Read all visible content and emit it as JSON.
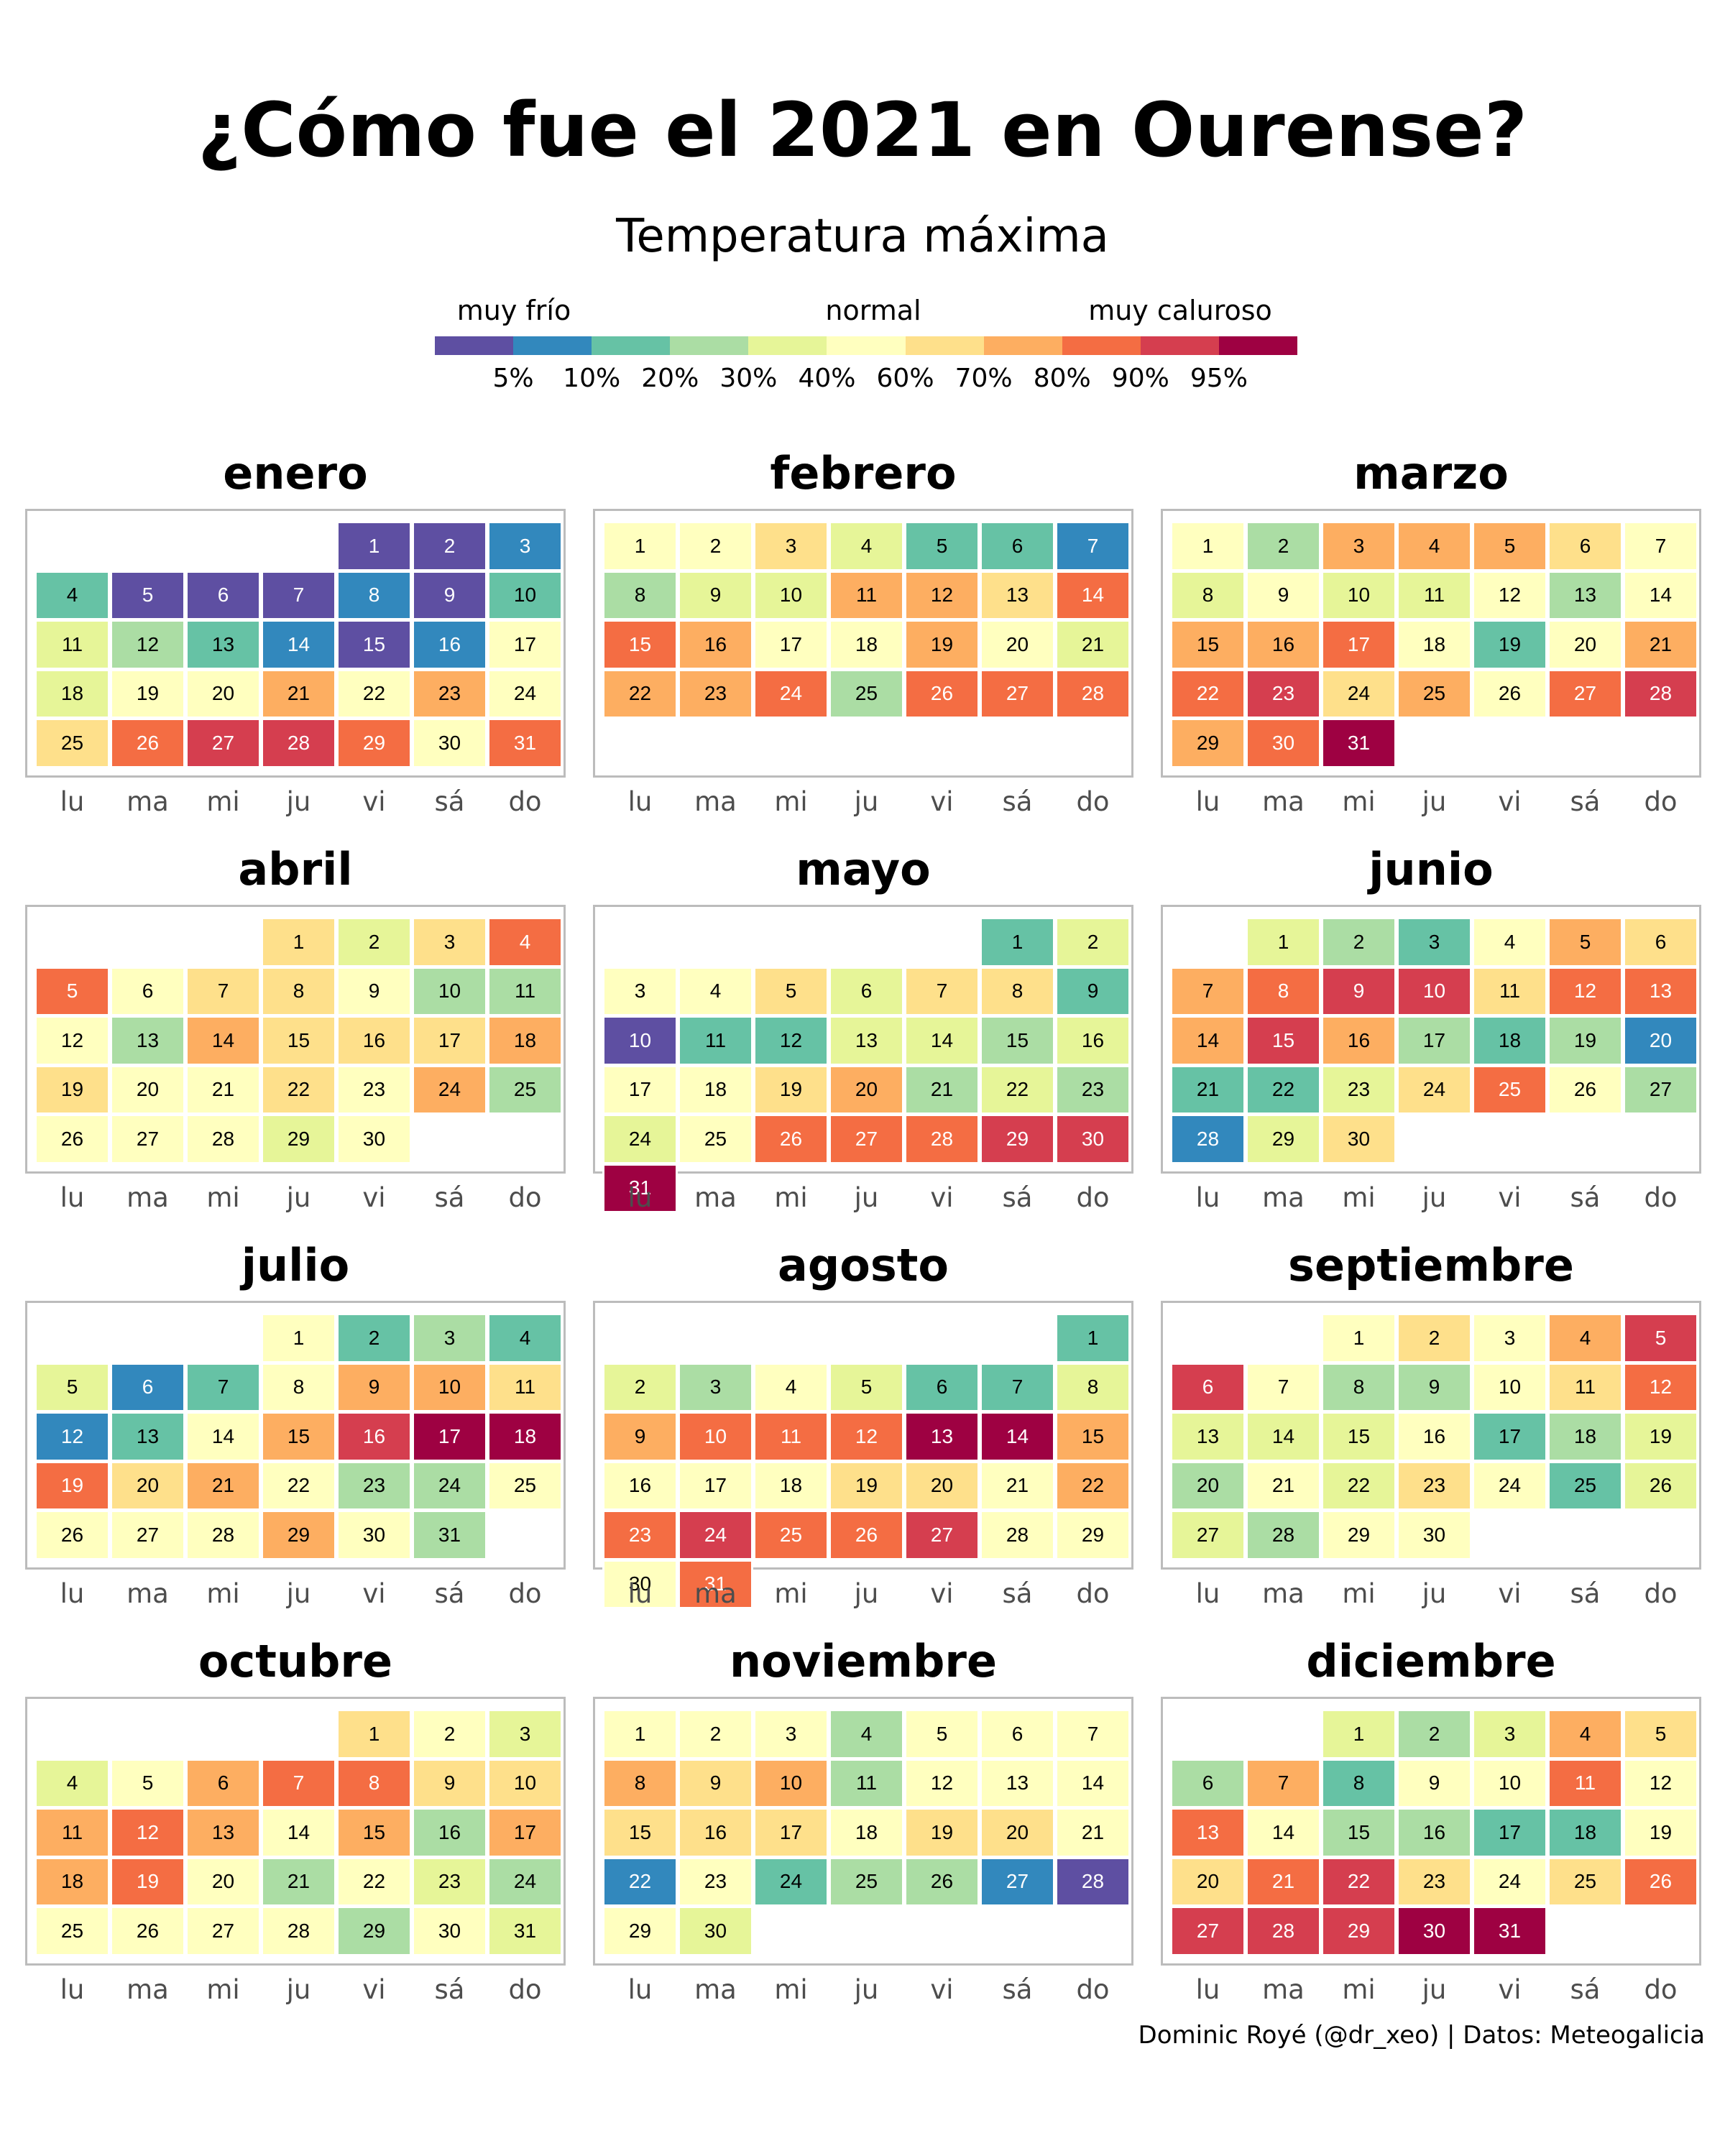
{
  "title": "¿Cómo fue el 2021 en Ourense?",
  "subtitle": "Temperatura máxima",
  "caption": "Dominic Royé (@dr_xeo) | Datos: Meteogalicia",
  "legend": {
    "labels": [
      "muy frío",
      "normal",
      "muy caluroso"
    ],
    "ticks": [
      "5%",
      "10%",
      "20%",
      "30%",
      "40%",
      "60%",
      "70%",
      "80%",
      "90%",
      "95%"
    ],
    "colors": [
      "#5e4fa2",
      "#3288bd",
      "#66c2a5",
      "#abdda4",
      "#e6f598",
      "#ffffbf",
      "#fee08b",
      "#fdae61",
      "#f46d43",
      "#d53e4f",
      "#9e0142"
    ]
  },
  "weekdays": [
    "lu",
    "ma",
    "mi",
    "ju",
    "vi",
    "sá",
    "do"
  ],
  "chart_data": {
    "type": "heatmap",
    "title": "¿Cómo fue el 2021 en Ourense?",
    "subtitle": "Temperatura máxima",
    "year": 2021,
    "value_scale": "percentile class index: 0=<5%, 1=5-10%, 2=10-20%, 3=20-30%, 4=30-40%, 5=40-60%, 6=60-70%, 7=70-80%, 8=80-90%, 9=90-95%, 10=>95%",
    "months": [
      {
        "name": "enero",
        "first_weekday": 4,
        "values": [
          0,
          0,
          1,
          2,
          0,
          0,
          0,
          1,
          0,
          2,
          4,
          3,
          2,
          1,
          0,
          1,
          5,
          4,
          5,
          5,
          7,
          5,
          7,
          5,
          6,
          8,
          9,
          9,
          8,
          5,
          8
        ]
      },
      {
        "name": "febrero",
        "first_weekday": 0,
        "values": [
          5,
          5,
          6,
          4,
          2,
          2,
          1,
          3,
          4,
          4,
          7,
          7,
          6,
          8,
          8,
          7,
          5,
          5,
          7,
          5,
          4,
          7,
          7,
          8,
          3,
          8,
          8,
          8
        ]
      },
      {
        "name": "marzo",
        "first_weekday": 0,
        "values": [
          5,
          3,
          7,
          7,
          7,
          6,
          5,
          4,
          5,
          4,
          4,
          5,
          3,
          5,
          7,
          7,
          8,
          5,
          2,
          5,
          7,
          8,
          9,
          6,
          7,
          5,
          8,
          9,
          7,
          8,
          10
        ]
      },
      {
        "name": "abril",
        "first_weekday": 3,
        "values": [
          6,
          4,
          6,
          8,
          8,
          5,
          6,
          6,
          5,
          3,
          3,
          5,
          3,
          7,
          6,
          6,
          6,
          7,
          6,
          5,
          5,
          6,
          5,
          7,
          3,
          5,
          5,
          5,
          4,
          5
        ]
      },
      {
        "name": "mayo",
        "first_weekday": 5,
        "values": [
          2,
          4,
          5,
          5,
          6,
          4,
          6,
          6,
          2,
          0,
          2,
          2,
          4,
          4,
          3,
          4,
          5,
          5,
          6,
          7,
          3,
          4,
          3,
          4,
          5,
          8,
          8,
          8,
          9,
          9,
          10
        ]
      },
      {
        "name": "junio",
        "first_weekday": 1,
        "values": [
          4,
          3,
          2,
          5,
          7,
          6,
          7,
          8,
          9,
          9,
          6,
          8,
          8,
          7,
          9,
          7,
          3,
          2,
          3,
          1,
          2,
          2,
          4,
          6,
          8,
          5,
          3,
          1,
          4,
          6
        ]
      },
      {
        "name": "julio",
        "first_weekday": 3,
        "values": [
          5,
          2,
          3,
          2,
          4,
          1,
          2,
          5,
          7,
          7,
          6,
          1,
          2,
          5,
          7,
          9,
          10,
          10,
          8,
          6,
          7,
          5,
          3,
          3,
          5,
          5,
          5,
          5,
          7,
          5,
          3
        ]
      },
      {
        "name": "agosto",
        "first_weekday": 6,
        "values": [
          2,
          4,
          3,
          5,
          4,
          2,
          2,
          4,
          7,
          8,
          8,
          8,
          10,
          10,
          7,
          5,
          5,
          5,
          6,
          6,
          5,
          7,
          8,
          9,
          8,
          8,
          9,
          5,
          5,
          5,
          8
        ]
      },
      {
        "name": "septiembre",
        "first_weekday": 2,
        "values": [
          5,
          6,
          5,
          7,
          9,
          9,
          5,
          3,
          3,
          5,
          6,
          8,
          4,
          4,
          4,
          5,
          2,
          3,
          4,
          3,
          5,
          4,
          6,
          5,
          2,
          4,
          4,
          3,
          5,
          5
        ]
      },
      {
        "name": "octubre",
        "first_weekday": 4,
        "values": [
          6,
          5,
          4,
          4,
          5,
          7,
          8,
          8,
          6,
          6,
          7,
          8,
          7,
          5,
          7,
          3,
          7,
          7,
          8,
          5,
          3,
          5,
          4,
          3,
          5,
          5,
          5,
          5,
          3,
          5,
          4
        ]
      },
      {
        "name": "noviembre",
        "first_weekday": 0,
        "values": [
          5,
          5,
          5,
          3,
          5,
          5,
          5,
          7,
          6,
          7,
          3,
          5,
          5,
          5,
          6,
          6,
          6,
          5,
          6,
          6,
          5,
          1,
          5,
          2,
          3,
          3,
          1,
          0,
          5,
          4
        ]
      },
      {
        "name": "diciembre",
        "first_weekday": 2,
        "values": [
          4,
          3,
          4,
          7,
          6,
          3,
          7,
          2,
          5,
          5,
          8,
          5,
          8,
          5,
          3,
          3,
          2,
          2,
          5,
          6,
          8,
          9,
          6,
          5,
          6,
          8,
          9,
          9,
          9,
          10,
          10
        ]
      }
    ]
  }
}
